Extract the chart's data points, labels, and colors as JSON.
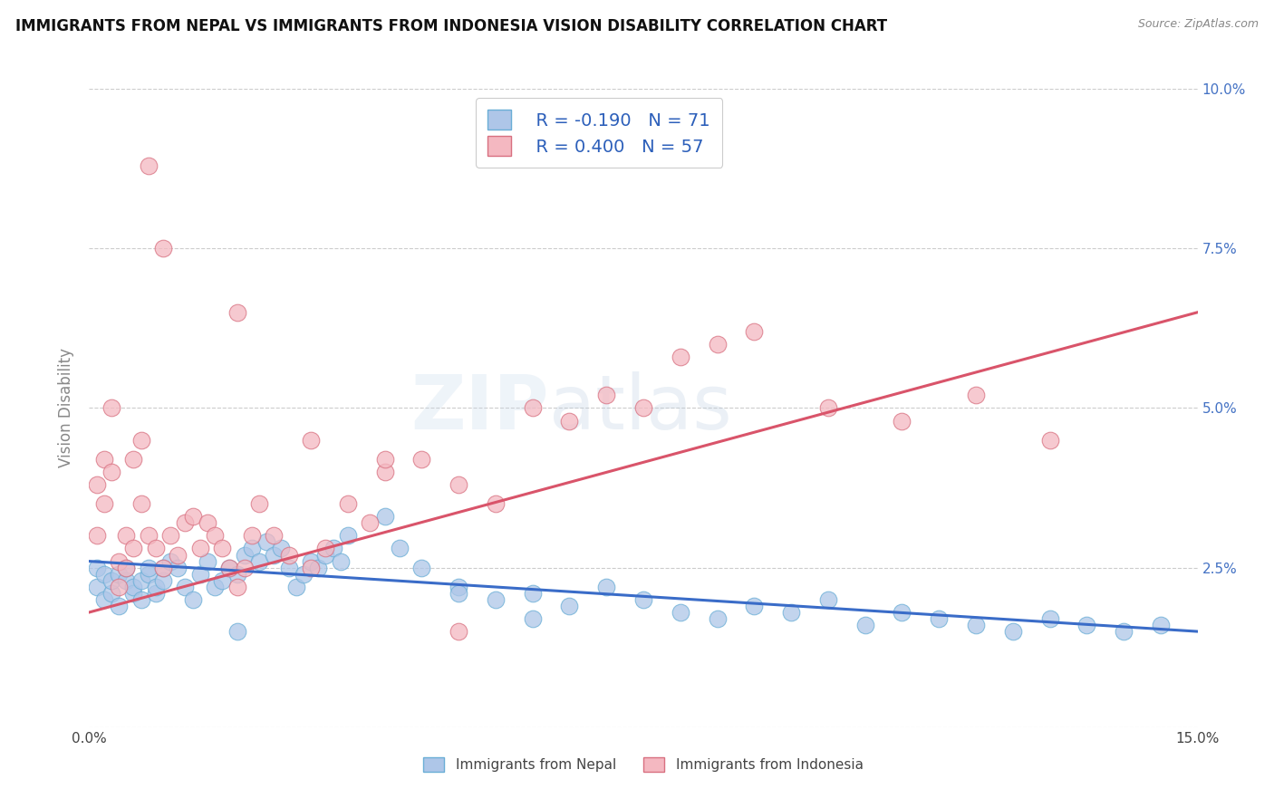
{
  "title": "IMMIGRANTS FROM NEPAL VS IMMIGRANTS FROM INDONESIA VISION DISABILITY CORRELATION CHART",
  "source": "Source: ZipAtlas.com",
  "ylabel": "Vision Disability",
  "xmin": 0.0,
  "xmax": 0.15,
  "ymin": 0.0,
  "ymax": 0.1,
  "nepal_color": "#aec6e8",
  "nepal_edge_color": "#6aaed6",
  "indonesia_color": "#f4b8c1",
  "indonesia_edge_color": "#d87080",
  "nepal_R": -0.19,
  "nepal_N": 71,
  "indonesia_R": 0.4,
  "indonesia_N": 57,
  "nepal_line_color": "#3a6cc8",
  "indonesia_line_color": "#d9546a",
  "background_color": "#ffffff",
  "legend_color": "#2c5fba",
  "grid_color": "#cccccc",
  "tick_color": "#4472c4",
  "nepal_trend_x0": 0.0,
  "nepal_trend_y0": 0.026,
  "nepal_trend_x1": 0.15,
  "nepal_trend_y1": 0.015,
  "indonesia_trend_x0": 0.0,
  "indonesia_trend_y0": 0.018,
  "indonesia_trend_x1": 0.15,
  "indonesia_trend_y1": 0.065,
  "nepal_scatter_x": [
    0.001,
    0.001,
    0.002,
    0.002,
    0.003,
    0.003,
    0.004,
    0.004,
    0.005,
    0.005,
    0.006,
    0.006,
    0.007,
    0.007,
    0.008,
    0.008,
    0.009,
    0.009,
    0.01,
    0.01,
    0.011,
    0.012,
    0.013,
    0.014,
    0.015,
    0.016,
    0.017,
    0.018,
    0.019,
    0.02,
    0.021,
    0.022,
    0.023,
    0.024,
    0.025,
    0.026,
    0.027,
    0.028,
    0.029,
    0.03,
    0.031,
    0.032,
    0.033,
    0.034,
    0.035,
    0.04,
    0.042,
    0.045,
    0.05,
    0.055,
    0.06,
    0.065,
    0.07,
    0.075,
    0.08,
    0.085,
    0.09,
    0.095,
    0.1,
    0.105,
    0.11,
    0.115,
    0.12,
    0.125,
    0.13,
    0.135,
    0.14,
    0.145,
    0.05,
    0.06,
    0.02
  ],
  "nepal_scatter_y": [
    0.022,
    0.025,
    0.02,
    0.024,
    0.021,
    0.023,
    0.019,
    0.024,
    0.023,
    0.025,
    0.021,
    0.022,
    0.023,
    0.02,
    0.024,
    0.025,
    0.021,
    0.022,
    0.023,
    0.025,
    0.026,
    0.025,
    0.022,
    0.02,
    0.024,
    0.026,
    0.022,
    0.023,
    0.025,
    0.024,
    0.027,
    0.028,
    0.026,
    0.029,
    0.027,
    0.028,
    0.025,
    0.022,
    0.024,
    0.026,
    0.025,
    0.027,
    0.028,
    0.026,
    0.03,
    0.033,
    0.028,
    0.025,
    0.022,
    0.02,
    0.021,
    0.019,
    0.022,
    0.02,
    0.018,
    0.017,
    0.019,
    0.018,
    0.02,
    0.016,
    0.018,
    0.017,
    0.016,
    0.015,
    0.017,
    0.016,
    0.015,
    0.016,
    0.021,
    0.017,
    0.015
  ],
  "indonesia_scatter_x": [
    0.001,
    0.001,
    0.002,
    0.002,
    0.003,
    0.003,
    0.004,
    0.004,
    0.005,
    0.005,
    0.006,
    0.006,
    0.007,
    0.007,
    0.008,
    0.009,
    0.01,
    0.011,
    0.012,
    0.013,
    0.014,
    0.015,
    0.016,
    0.017,
    0.018,
    0.019,
    0.02,
    0.021,
    0.022,
    0.023,
    0.025,
    0.027,
    0.03,
    0.032,
    0.035,
    0.038,
    0.04,
    0.045,
    0.05,
    0.055,
    0.06,
    0.065,
    0.07,
    0.075,
    0.08,
    0.085,
    0.09,
    0.1,
    0.11,
    0.12,
    0.13,
    0.008,
    0.01,
    0.02,
    0.03,
    0.04,
    0.05
  ],
  "indonesia_scatter_y": [
    0.03,
    0.038,
    0.035,
    0.042,
    0.04,
    0.05,
    0.022,
    0.026,
    0.025,
    0.03,
    0.028,
    0.042,
    0.035,
    0.045,
    0.03,
    0.028,
    0.025,
    0.03,
    0.027,
    0.032,
    0.033,
    0.028,
    0.032,
    0.03,
    0.028,
    0.025,
    0.022,
    0.025,
    0.03,
    0.035,
    0.03,
    0.027,
    0.025,
    0.028,
    0.035,
    0.032,
    0.04,
    0.042,
    0.038,
    0.035,
    0.05,
    0.048,
    0.052,
    0.05,
    0.058,
    0.06,
    0.062,
    0.05,
    0.048,
    0.052,
    0.045,
    0.088,
    0.075,
    0.065,
    0.045,
    0.042,
    0.015
  ]
}
